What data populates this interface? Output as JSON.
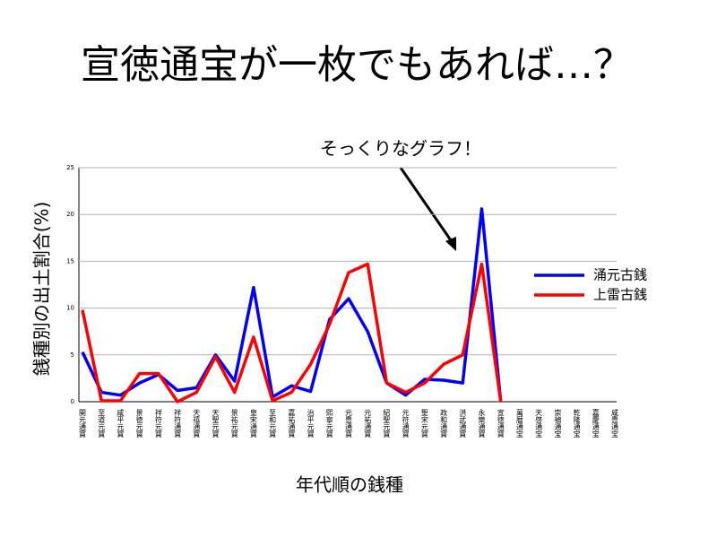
{
  "title": "宣徳通宝が一枚でもあれば…？",
  "annotation": "そっくりなグラフ！",
  "chart_data": {
    "type": "line",
    "ylabel": "銭種別の出土割合(%)",
    "xlabel": "年代順の銭種",
    "categories": [
      "開元通寶",
      "至道元寶",
      "咸平元寶",
      "景徳元寶",
      "祥符元寶",
      "祥符通寶",
      "天禧通寶",
      "天聖元寶",
      "景祐元寶",
      "皇宋通寶",
      "至和元寶",
      "嘉祐通寶",
      "治平元寶",
      "熙寧元寶",
      "元豊通寶",
      "元祐通寶",
      "紹聖元寶",
      "元符通寶",
      "聖宋元寶",
      "政和通寶",
      "洪武通寶",
      "永樂通寶",
      "宣徳通寶",
      "萬暦通宝",
      "天啓通宝",
      "崇禎通宝",
      "乾隆通宝",
      "嘉慶通宝",
      "咸豊通宝"
    ],
    "series": [
      {
        "name": "涌元古銭",
        "color": "#0000ff",
        "values": [
          5.3,
          1.0,
          0.7,
          2.0,
          2.9,
          1.2,
          1.5,
          5.0,
          2.2,
          12.2,
          0.5,
          1.7,
          1.1,
          8.8,
          11.0,
          7.5,
          2.0,
          0.7,
          2.4,
          2.3,
          2.0,
          20.6,
          0,
          null,
          null,
          null,
          null,
          null,
          null
        ]
      },
      {
        "name": "上雷古銭",
        "color": "#ff0000",
        "values": [
          9.8,
          0.1,
          0.1,
          3.0,
          3.0,
          0.0,
          1.0,
          4.8,
          1.0,
          6.9,
          0.1,
          1.0,
          4.0,
          8.3,
          13.8,
          14.7,
          2.0,
          1.0,
          2.0,
          4.0,
          5.0,
          14.7,
          0,
          null,
          null,
          null,
          null,
          null,
          null
        ]
      }
    ],
    "ylim": [
      0,
      25
    ],
    "yticks": [
      0,
      5,
      10,
      15,
      20,
      25
    ],
    "grid": true,
    "legend": "right"
  }
}
